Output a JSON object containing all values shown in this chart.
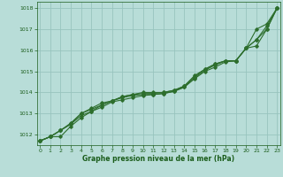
{
  "x": [
    0,
    1,
    2,
    3,
    4,
    5,
    6,
    7,
    8,
    9,
    10,
    11,
    12,
    13,
    14,
    15,
    16,
    17,
    18,
    19,
    20,
    21,
    22,
    23
  ],
  "lines": [
    [
      1011.7,
      1011.9,
      1011.9,
      1012.4,
      1012.8,
      1013.1,
      1013.3,
      1013.55,
      1013.65,
      1013.75,
      1013.85,
      1013.9,
      1013.95,
      1014.05,
      1014.25,
      1014.65,
      1015.0,
      1015.2,
      1015.45,
      1015.5,
      1016.1,
      1017.0,
      1017.25,
      1018.0
    ],
    [
      1011.7,
      1011.9,
      1012.2,
      1012.5,
      1012.9,
      1013.1,
      1013.4,
      1013.6,
      1013.75,
      1013.85,
      1013.9,
      1013.9,
      1013.95,
      1014.05,
      1014.25,
      1014.7,
      1015.05,
      1015.3,
      1015.5,
      1015.5,
      1016.1,
      1016.2,
      1017.0,
      1018.0
    ],
    [
      1011.7,
      1011.9,
      1012.2,
      1012.55,
      1013.0,
      1013.2,
      1013.4,
      1013.6,
      1013.8,
      1013.9,
      1014.0,
      1014.0,
      1014.0,
      1014.1,
      1014.3,
      1014.75,
      1015.1,
      1015.35,
      1015.5,
      1015.5,
      1016.1,
      1016.5,
      1017.0,
      1018.0
    ],
    [
      1011.7,
      1011.9,
      1012.2,
      1012.5,
      1013.0,
      1013.25,
      1013.5,
      1013.6,
      1013.8,
      1013.9,
      1013.95,
      1013.95,
      1014.0,
      1014.1,
      1014.3,
      1014.8,
      1015.1,
      1015.35,
      1015.5,
      1015.5,
      1016.1,
      1016.5,
      1017.15,
      1018.0
    ]
  ],
  "line_color": "#2d6e2d",
  "bg_color": "#b8ddd8",
  "grid_color": "#98c4be",
  "xlabel": "Graphe pression niveau de la mer (hPa)",
  "xlabel_color": "#1a5c1a",
  "tick_color": "#1a5c1a",
  "ylim": [
    1011.5,
    1018.3
  ],
  "xlim": [
    -0.3,
    23.3
  ],
  "yticks": [
    1012,
    1013,
    1014,
    1015,
    1016,
    1017,
    1018
  ],
  "xticks": [
    0,
    1,
    2,
    3,
    4,
    5,
    6,
    7,
    8,
    9,
    10,
    11,
    12,
    13,
    14,
    15,
    16,
    17,
    18,
    19,
    20,
    21,
    22,
    23
  ]
}
